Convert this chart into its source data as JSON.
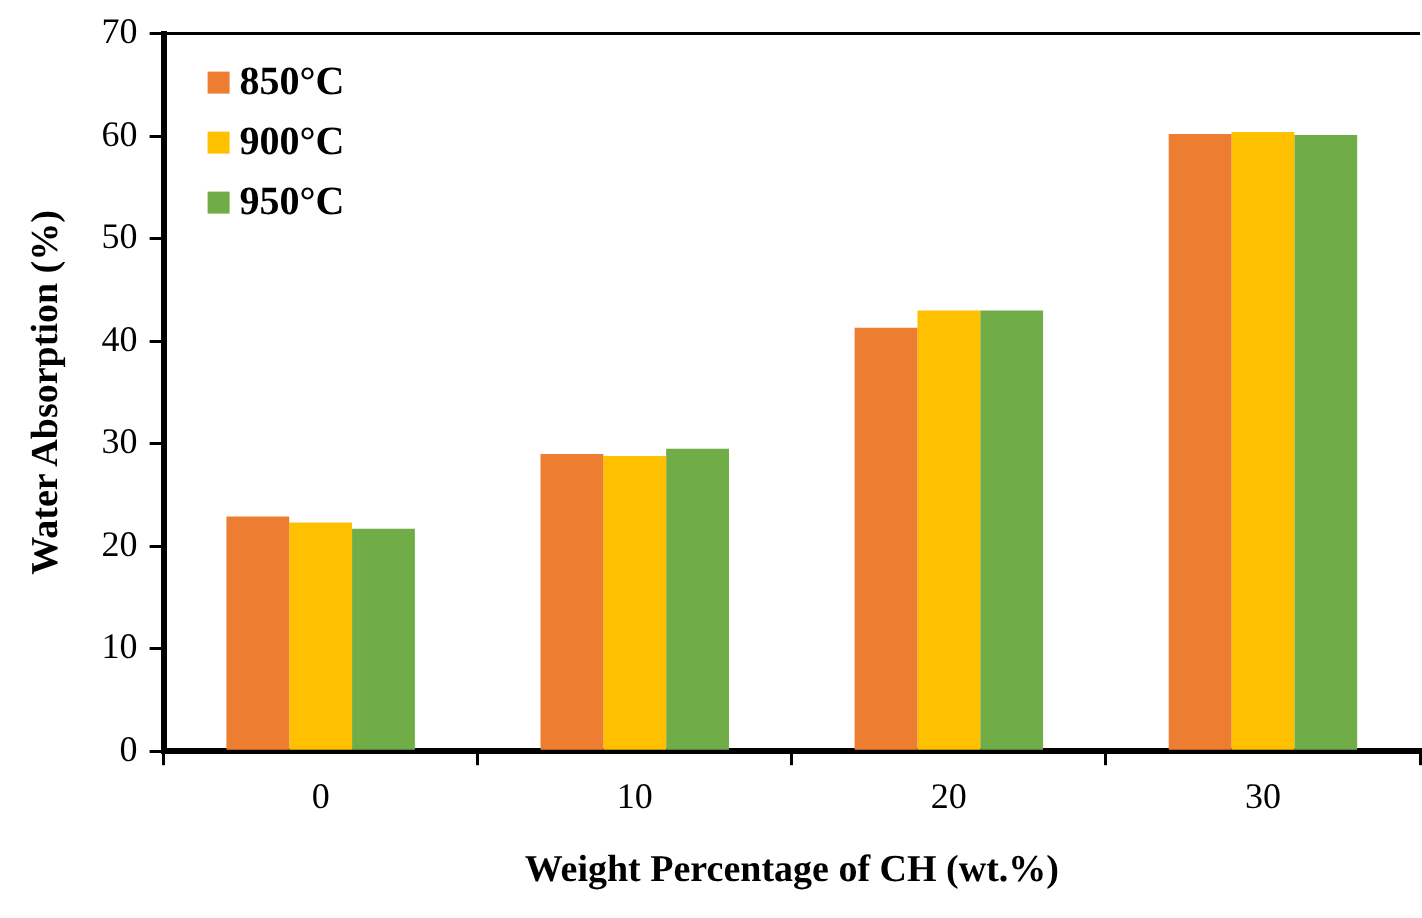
{
  "chart_data": {
    "type": "bar",
    "xlabel": "Weight Percentage of CH (wt.%)",
    "ylabel": "Water Absorption (%)",
    "categories": [
      "0",
      "10",
      "20",
      "30"
    ],
    "series": [
      {
        "name": "850°C",
        "color": "#ed7d31",
        "values": [
          22.9,
          29.0,
          41.3,
          60.2
        ]
      },
      {
        "name": "900°C",
        "color": "#ffc000",
        "values": [
          22.3,
          28.8,
          43.0,
          60.4
        ]
      },
      {
        "name": "950°C",
        "color": "#70ad47",
        "values": [
          21.7,
          29.5,
          43.0,
          60.1
        ]
      }
    ],
    "ylim": [
      0,
      70
    ],
    "yticks": [
      0,
      10,
      20,
      30,
      40,
      50,
      60,
      70
    ],
    "grid": false,
    "legend": "top left"
  }
}
